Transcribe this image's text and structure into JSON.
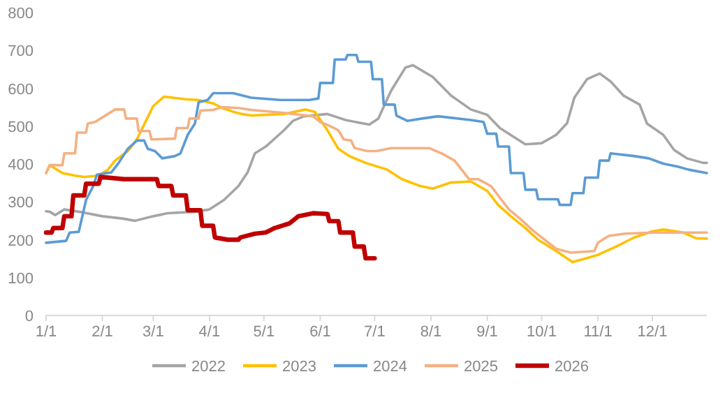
{
  "chart_data": {
    "type": "line",
    "xlim": [
      "--01-01",
      "--12-31"
    ],
    "xticks": [
      {
        "value": "--01-01",
        "label": "1/1"
      },
      {
        "value": "--02-01",
        "label": "2/1"
      },
      {
        "value": "--03-01",
        "label": "3/1"
      },
      {
        "value": "--04-01",
        "label": "4/1"
      },
      {
        "value": "--05-01",
        "label": "5/1"
      },
      {
        "value": "--06-01",
        "label": "6/1"
      },
      {
        "value": "--07-01",
        "label": "7/1"
      },
      {
        "value": "--08-01",
        "label": "8/1"
      },
      {
        "value": "--09-01",
        "label": "9/1"
      },
      {
        "value": "--10-01",
        "label": "10/1"
      },
      {
        "value": "--11-01",
        "label": "11/1"
      },
      {
        "value": "--12-01",
        "label": "12/1"
      }
    ],
    "ylim": [
      0,
      800
    ],
    "yticks": [
      0,
      100,
      200,
      300,
      400,
      500,
      600,
      700,
      800
    ],
    "legend": "bottom",
    "marker": "none",
    "line_style": "solid",
    "series": [
      {
        "name": "2022",
        "color": "#a5a5a5",
        "x": [
          "--01-01",
          "--01-03",
          "--01-06",
          "--01-11",
          "--01-19",
          "--02-01",
          "--02-12",
          "--02-19",
          "--03-01",
          "--03-09",
          "--03-24",
          "--04-01",
          "--04-09",
          "--04-17",
          "--04-22",
          "--04-26",
          "--05-02",
          "--05-12",
          "--05-17",
          "--05-23",
          "--06-05",
          "--06-15",
          "--06-28",
          "--07-03",
          "--07-10",
          "--07-18",
          "--07-22",
          "--08-02",
          "--08-12",
          "--08-23",
          "--09-01",
          "--09-08",
          "--09-22",
          "--10-01",
          "--10-09",
          "--10-15",
          "--10-19",
          "--10-26",
          "--11-02",
          "--11-08",
          "--11-15",
          "--11-24",
          "--11-28",
          "--12-07",
          "--12-13",
          "--12-20",
          "--12-29",
          "--12-31"
        ],
        "values": [
          275,
          274,
          265,
          280,
          274,
          262,
          256,
          250,
          262,
          270,
          274,
          280,
          305,
          342,
          378,
          428,
          446,
          489,
          514,
          526,
          532,
          516,
          504,
          520,
          593,
          655,
          661,
          630,
          581,
          544,
          530,
          495,
          452,
          455,
          477,
          508,
          575,
          624,
          639,
          618,
          581,
          557,
          507,
          477,
          437,
          415,
          403,
          403
        ]
      },
      {
        "name": "2023",
        "color": "#ffc000",
        "x": [
          "--01-01",
          "--01-03",
          "--01-10",
          "--01-17",
          "--01-22",
          "--01-30",
          "--02-04",
          "--02-08",
          "--02-15",
          "--02-20",
          "--02-25",
          "--03-01",
          "--03-07",
          "--03-19",
          "--03-26",
          "--04-03",
          "--04-08",
          "--04-14",
          "--04-19",
          "--04-24",
          "--05-12",
          "--05-24",
          "--05-29",
          "--06-05",
          "--06-11",
          "--06-17",
          "--06-26",
          "--07-08",
          "--07-16",
          "--07-26",
          "--08-02",
          "--08-12",
          "--08-23",
          "--08-28",
          "--09-01",
          "--09-07",
          "--09-14",
          "--09-22",
          "--09-29",
          "--10-09",
          "--10-18",
          "--10-24",
          "--11-01",
          "--11-11",
          "--11-21",
          "--12-01",
          "--12-07",
          "--12-18",
          "--12-25",
          "--12-31"
        ],
        "values": [
          376,
          397,
          376,
          369,
          366,
          369,
          385,
          409,
          434,
          465,
          514,
          553,
          578,
          571,
          569,
          560,
          548,
          538,
          532,
          528,
          532,
          544,
          538,
          489,
          440,
          421,
          403,
          385,
          360,
          342,
          335,
          351,
          354,
          340,
          329,
          292,
          262,
          231,
          200,
          170,
          141,
          149,
          160,
          182,
          206,
          222,
          227,
          219,
          204,
          203
        ]
      },
      {
        "name": "2024",
        "color": "#5b9bd5",
        "x": [
          "--01-01",
          "--01-12",
          "--01-14",
          "--01-19",
          "--01-23",
          "--01-27",
          "--01-29",
          "--02-06",
          "--02-10",
          "--02-15",
          "--02-20",
          "--02-24",
          "--02-26",
          "--03-02",
          "--03-06",
          "--03-13",
          "--03-16",
          "--03-20",
          "--03-24",
          "--03-26",
          "--03-31",
          "--04-03",
          "--04-14",
          "--04-24",
          "--05-10",
          "--05-26",
          "--05-31",
          "--06-01",
          "--06-08",
          "--06-09",
          "--06-15",
          "--06-16",
          "--06-21",
          "--06-22",
          "--06-29",
          "--06-30",
          "--07-05",
          "--07-06",
          "--07-12",
          "--07-13",
          "--07-19",
          "--07-27",
          "--08-05",
          "--08-23",
          "--08-30",
          "--09-01",
          "--09-06",
          "--09-07",
          "--09-13",
          "--09-14",
          "--09-21",
          "--09-22",
          "--09-28",
          "--09-29",
          "--10-10",
          "--10-11",
          "--10-17",
          "--10-18",
          "--10-24",
          "--10-25",
          "--11-01",
          "--11-02",
          "--11-07",
          "--11-08",
          "--11-21",
          "--11-29",
          "--12-07",
          "--12-15",
          "--12-21",
          "--12-31"
        ],
        "values": [
          192,
          197,
          219,
          221,
          305,
          342,
          372,
          378,
          403,
          440,
          462,
          462,
          440,
          434,
          415,
          421,
          428,
          477,
          507,
          563,
          569,
          587,
          587,
          575,
          569,
          569,
          573,
          614,
          614,
          676,
          676,
          688,
          688,
          670,
          670,
          624,
          624,
          557,
          557,
          528,
          514,
          520,
          526,
          516,
          511,
          480,
          480,
          446,
          446,
          376,
          376,
          332,
          332,
          307,
          307,
          292,
          292,
          323,
          323,
          364,
          364,
          409,
          409,
          428,
          421,
          415,
          401,
          393,
          385,
          376
        ]
      },
      {
        "name": "2025",
        "color": "#f4b183",
        "x": [
          "--01-01",
          "--01-03",
          "--01-10",
          "--01-11",
          "--01-17",
          "--01-18",
          "--01-23",
          "--01-24",
          "--01-28",
          "--02-02",
          "--02-08",
          "--02-13",
          "--02-14",
          "--02-20",
          "--02-21",
          "--02-27",
          "--02-28",
          "--03-13",
          "--03-14",
          "--03-20",
          "--03-21",
          "--03-26",
          "--03-27",
          "--04-03",
          "--04-08",
          "--04-17",
          "--04-24",
          "--05-12",
          "--05-28",
          "--06-01",
          "--06-06",
          "--06-11",
          "--06-14",
          "--06-18",
          "--06-20",
          "--06-27",
          "--07-02",
          "--07-10",
          "--07-31",
          "--08-07",
          "--08-14",
          "--08-22",
          "--08-27",
          "--09-03",
          "--09-07",
          "--09-13",
          "--09-19",
          "--09-26",
          "--10-09",
          "--10-17",
          "--10-30",
          "--11-01",
          "--11-07",
          "--11-16",
          "--12-02",
          "--12-31"
        ],
        "values": [
          376,
          397,
          397,
          428,
          428,
          483,
          483,
          507,
          511,
          526,
          544,
          544,
          520,
          520,
          487,
          487,
          465,
          467,
          495,
          495,
          520,
          520,
          541,
          543,
          550,
          548,
          543,
          535,
          526,
          511,
          501,
          489,
          465,
          462,
          442,
          434,
          434,
          442,
          442,
          428,
          409,
          360,
          360,
          342,
          317,
          280,
          256,
          225,
          176,
          166,
          170,
          192,
          210,
          216,
          219,
          219
        ]
      },
      {
        "name": "2026",
        "color": "#c00000",
        "x": [
          "--01-01",
          "--01-04",
          "--01-05",
          "--01-10",
          "--01-11",
          "--01-15",
          "--01-16",
          "--01-22",
          "--01-23",
          "--01-30",
          "--01-31",
          "--02-04",
          "--02-13",
          "--03-03",
          "--03-04",
          "--03-11",
          "--03-12",
          "--03-19",
          "--03-20",
          "--03-27",
          "--03-28",
          "--04-03",
          "--04-04",
          "--04-11",
          "--04-17",
          "--04-18",
          "--04-26",
          "--05-02",
          "--05-07",
          "--05-15",
          "--05-20",
          "--05-28",
          "--06-05",
          "--06-06",
          "--06-11",
          "--06-12",
          "--06-19",
          "--06-20",
          "--06-25",
          "--06-26",
          "--07-01"
        ],
        "values": [
          219,
          219,
          231,
          231,
          262,
          262,
          317,
          317,
          348,
          348,
          366,
          364,
          360,
          360,
          342,
          342,
          317,
          317,
          278,
          278,
          237,
          237,
          206,
          200,
          200,
          206,
          216,
          219,
          231,
          243,
          262,
          270,
          268,
          249,
          249,
          219,
          219,
          182,
          182,
          151,
          151
        ]
      }
    ]
  }
}
